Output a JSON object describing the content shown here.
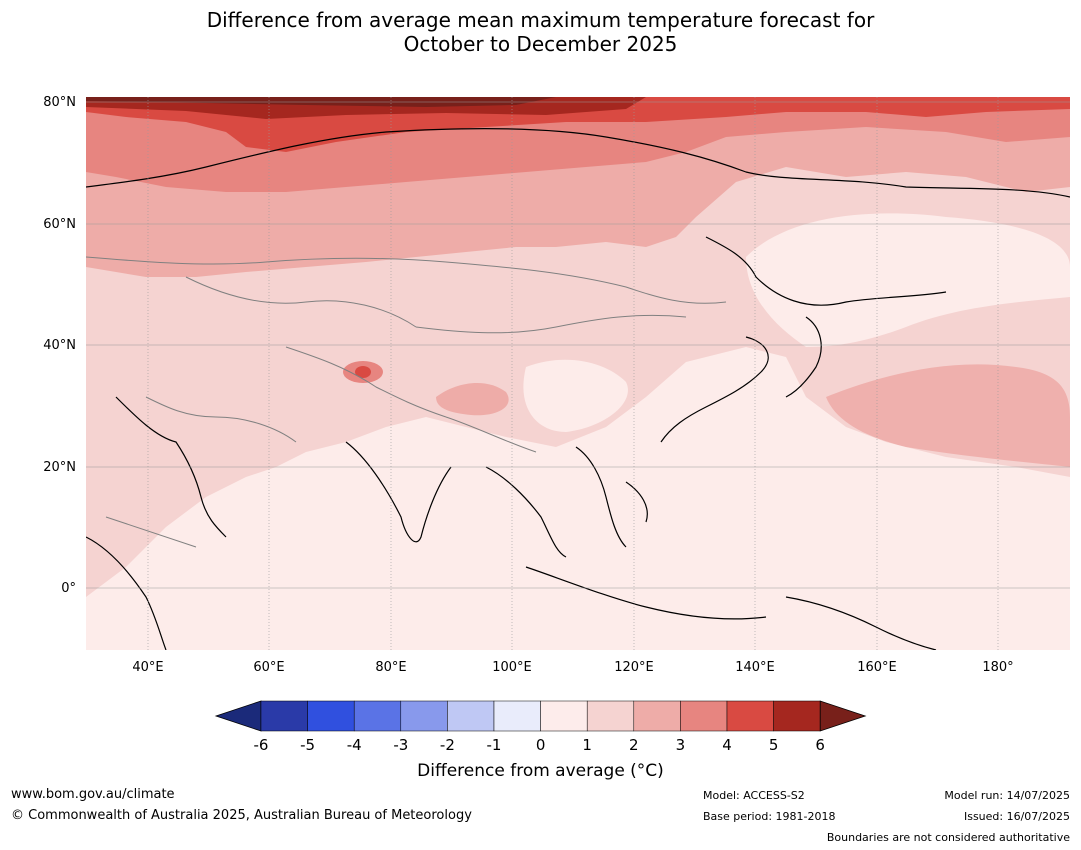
{
  "title_line1": "Difference from average mean maximum temperature forecast for",
  "title_line2": "October to December 2025",
  "lat_labels": [
    "80°N",
    "60°N",
    "40°N",
    "20°N",
    "0°"
  ],
  "lon_labels": [
    "40°E",
    "60°E",
    "80°E",
    "100°E",
    "120°E",
    "140°E",
    "160°E",
    "180°"
  ],
  "colorbar": {
    "ticks": [
      "-6",
      "-5",
      "-4",
      "-3",
      "-2",
      "-1",
      "0",
      "1",
      "2",
      "3",
      "4",
      "5",
      "6"
    ],
    "colors": [
      "#2a3aa8",
      "#3050df",
      "#5a73e6",
      "#8899ec",
      "#bfc8f4",
      "#e9ecfb",
      "#fdeceb",
      "#f5d3d1",
      "#eeaca8",
      "#e78580",
      "#d94a42",
      "#a5271f"
    ],
    "low_extend_color": "#1b2a7a",
    "high_extend_color": "#78201a",
    "title": "Difference from average (°C)"
  },
  "footer": {
    "website": "www.bom.gov.au/climate",
    "copyright": "© Commonwealth of Australia 2025, Australian Bureau of Meteorology",
    "model": "Model: ACCESS-S2",
    "base_period": "Base period: 1981-2018",
    "model_run": "Model run: 14/07/2025",
    "issued": "Issued: 16/07/2025",
    "disclaimer": "Boundaries are not considered authoritative"
  }
}
